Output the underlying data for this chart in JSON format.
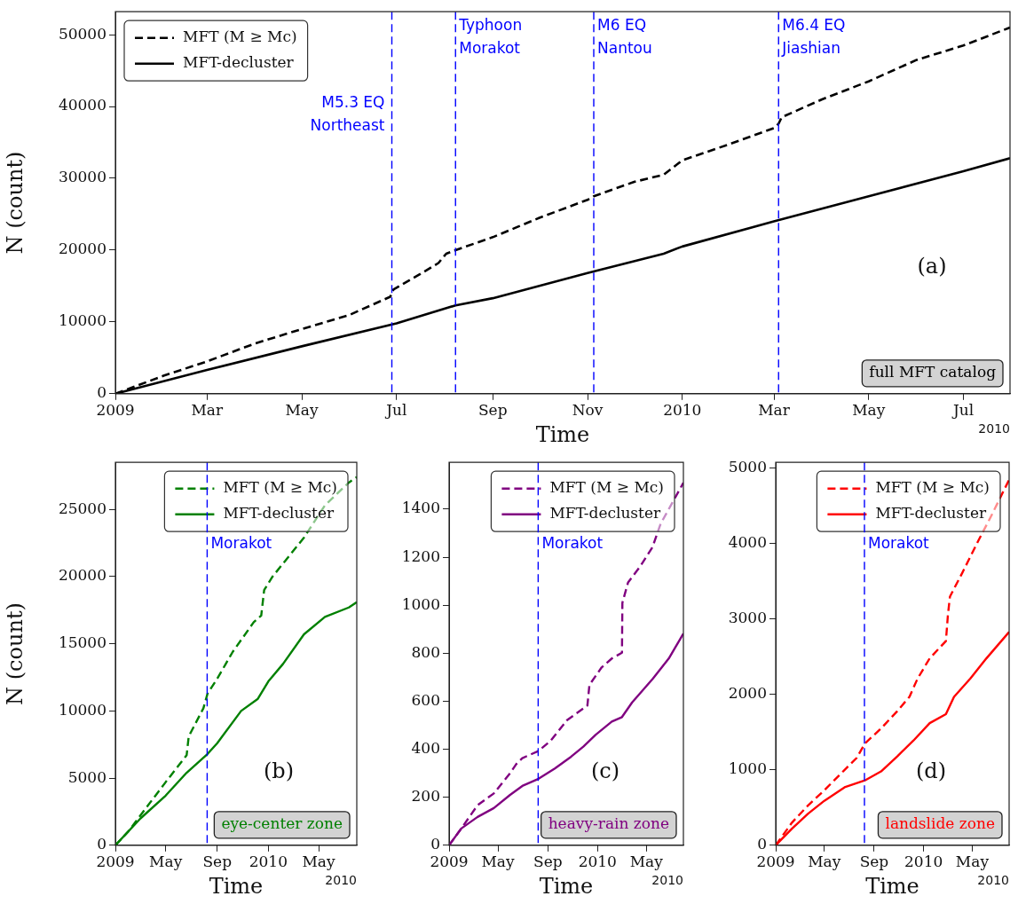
{
  "chart_data": [
    {
      "type": "line",
      "xlabel": "Time",
      "ylabel": "N (count)",
      "xlim": [
        "2009-01-01",
        "2010-07-31"
      ],
      "ylim": [
        0,
        53200
      ],
      "xticks": [
        {
          "value": "2009-01",
          "label": "2009"
        },
        {
          "value": "2009-03",
          "label": "Mar"
        },
        {
          "value": "2009-05",
          "label": "May"
        },
        {
          "value": "2009-07",
          "label": "Jul"
        },
        {
          "value": "2009-09",
          "label": "Sep"
        },
        {
          "value": "2009-11",
          "label": "Nov"
        },
        {
          "value": "2010-01",
          "label": "2010"
        },
        {
          "value": "2010-03",
          "label": "Mar"
        },
        {
          "value": "2010-05",
          "label": "May"
        },
        {
          "value": "2010-07",
          "label": "Jul"
        }
      ],
      "yticks": [
        0,
        10000,
        20000,
        30000,
        40000,
        50000
      ],
      "legend": "top left",
      "series": [
        {
          "name": "MFT (M ≥ Mc)",
          "color": "#000000",
          "line_style": "dashed",
          "x": [
            "2009-01-01",
            "2009-02-01",
            "2009-03-01",
            "2009-04-01",
            "2009-05-01",
            "2009-06-01",
            "2009-06-27",
            "2009-06-29",
            "2009-07-15",
            "2009-07-28",
            "2009-08-02",
            "2009-08-08",
            "2009-09-01",
            "2009-10-01",
            "2009-11-01",
            "2009-11-05",
            "2009-12-01",
            "2009-12-20",
            "2010-01-01",
            "2010-02-01",
            "2010-03-01",
            "2010-03-04",
            "2010-03-06",
            "2010-04-01",
            "2010-05-01",
            "2010-06-01",
            "2010-07-01",
            "2010-07-31"
          ],
          "values": [
            0,
            2500,
            4500,
            7000,
            9000,
            11000,
            13500,
            14500,
            16500,
            18200,
            19500,
            20000,
            21800,
            24500,
            27000,
            27500,
            29500,
            30500,
            32500,
            34800,
            37000,
            37600,
            38500,
            41000,
            43500,
            46500,
            48500,
            51000
          ]
        },
        {
          "name": "MFT-decluster",
          "color": "#000000",
          "line_style": "solid",
          "x": [
            "2009-01-01",
            "2009-03-01",
            "2009-05-01",
            "2009-07-01",
            "2009-08-08",
            "2009-09-01",
            "2009-11-01",
            "2009-12-20",
            "2010-01-01",
            "2010-03-01",
            "2010-05-01",
            "2010-07-01",
            "2010-07-31"
          ],
          "values": [
            0,
            3300,
            6600,
            9800,
            12300,
            13300,
            16800,
            19500,
            20500,
            24000,
            27500,
            31000,
            32800
          ]
        }
      ],
      "ref_lines": [
        {
          "axis": "x",
          "value": "2009-06-28",
          "label": "M5.3 EQ\nNortheast",
          "color": "#0000ff",
          "line_style": "dashed"
        },
        {
          "axis": "x",
          "value": "2009-08-08",
          "label": "Typhoon\nMorakot",
          "color": "#0000ff",
          "line_style": "dashed"
        },
        {
          "axis": "x",
          "value": "2009-11-05",
          "label": "M6 EQ\nNantou",
          "color": "#0000ff",
          "line_style": "dashed"
        },
        {
          "axis": "x",
          "value": "2010-03-04",
          "label": "M6.4 EQ\nJiashian",
          "color": "#0000ff",
          "line_style": "dashed"
        }
      ],
      "annotations": [
        "(a)",
        "full MFT catalog",
        "2010"
      ]
    },
    {
      "type": "line",
      "xlabel": "Time",
      "ylabel": "N (count)",
      "xlim": [
        "2009-01-01",
        "2010-07-31"
      ],
      "ylim": [
        0,
        28500
      ],
      "xticks": [
        {
          "value": "2009-01",
          "label": "2009"
        },
        {
          "value": "2009-05",
          "label": "May"
        },
        {
          "value": "2009-09",
          "label": "Sep"
        },
        {
          "value": "2010-01",
          "label": "2010"
        },
        {
          "value": "2010-05",
          "label": "May"
        }
      ],
      "yticks": [
        0,
        5000,
        10000,
        15000,
        20000,
        25000
      ],
      "legend": "top right",
      "series": [
        {
          "name": "MFT (M ≥ Mc)",
          "color": "#008000",
          "line_style": "dashed",
          "x": [
            "2009-01-01",
            "2009-01-31",
            "2009-05-01",
            "2009-06-20",
            "2009-06-25",
            "2009-07-30",
            "2009-08-09",
            "2009-09-01",
            "2009-10-08",
            "2009-11-27",
            "2009-12-15",
            "2009-12-22",
            "2010-01-11",
            "2010-03-27",
            "2010-05-16",
            "2010-07-12",
            "2010-07-31"
          ],
          "values": [
            0,
            1000,
            4700,
            6700,
            8100,
            10200,
            11300,
            12400,
            14400,
            16600,
            17100,
            19000,
            20000,
            22900,
            25300,
            27000,
            27400
          ]
        },
        {
          "name": "MFT-decluster",
          "color": "#008000",
          "line_style": "solid",
          "x": [
            "2009-01-01",
            "2009-03-02",
            "2009-05-01",
            "2009-06-20",
            "2009-08-09",
            "2009-09-01",
            "2009-10-28",
            "2009-12-07",
            "2010-01-01",
            "2010-02-05",
            "2010-03-27",
            "2010-05-16",
            "2010-07-12",
            "2010-07-31"
          ],
          "values": [
            0,
            2000,
            3700,
            5400,
            6800,
            7600,
            10000,
            10900,
            12200,
            13500,
            15700,
            17000,
            17700,
            18100
          ]
        }
      ],
      "ref_lines": [
        {
          "axis": "x",
          "value": "2009-08-08",
          "label": "Morakot",
          "color": "#0000ff",
          "line_style": "dashed"
        }
      ],
      "annotations": [
        "(b)",
        "eye-center zone",
        "2010"
      ]
    },
    {
      "type": "line",
      "xlabel": "Time",
      "xlim": [
        "2009-01-01",
        "2010-07-31"
      ],
      "ylim": [
        0,
        1595
      ],
      "xticks": [
        {
          "value": "2009-01",
          "label": "2009"
        },
        {
          "value": "2009-05",
          "label": "May"
        },
        {
          "value": "2009-09",
          "label": "Sep"
        },
        {
          "value": "2010-01",
          "label": "2010"
        },
        {
          "value": "2010-05",
          "label": "May"
        }
      ],
      "yticks": [
        0,
        200,
        400,
        600,
        800,
        1000,
        1200,
        1400
      ],
      "legend": "top right",
      "series": [
        {
          "name": "MFT (M ≥ Mc)",
          "color": "#800080",
          "line_style": "dashed",
          "x": [
            "2009-01-01",
            "2009-01-31",
            "2009-03-12",
            "2009-04-21",
            "2009-05-31",
            "2009-06-15",
            "2009-06-30",
            "2009-08-09",
            "2009-09-08",
            "2009-10-18",
            "2009-12-07",
            "2009-12-12",
            "2010-01-11",
            "2010-02-05",
            "2010-03-02",
            "2010-03-03",
            "2010-03-17",
            "2010-04-16",
            "2010-05-16",
            "2010-06-05",
            "2010-07-31"
          ],
          "values": [
            0,
            70,
            167,
            216,
            300,
            338,
            363,
            393,
            436,
            521,
            582,
            668,
            741,
            778,
            802,
            1010,
            1095,
            1162,
            1242,
            1339,
            1510
          ]
        },
        {
          "name": "MFT-decluster",
          "color": "#800080",
          "line_style": "solid",
          "x": [
            "2009-01-01",
            "2009-01-31",
            "2009-03-12",
            "2009-04-21",
            "2009-05-31",
            "2009-06-30",
            "2009-08-09",
            "2009-09-18",
            "2009-10-28",
            "2009-11-27",
            "2009-12-27",
            "2010-02-05",
            "2010-03-02",
            "2010-03-27",
            "2010-05-16",
            "2010-06-25",
            "2010-07-31"
          ],
          "values": [
            0,
            70,
            118,
            155,
            210,
            247,
            277,
            320,
            369,
            411,
            460,
            515,
            534,
            595,
            692,
            778,
            882
          ]
        }
      ],
      "ref_lines": [
        {
          "axis": "x",
          "value": "2009-08-08",
          "label": "Morakot",
          "color": "#0000ff",
          "line_style": "dashed"
        }
      ],
      "annotations": [
        "(c)",
        "heavy-rain zone",
        "2010"
      ]
    },
    {
      "type": "line",
      "xlabel": "Time",
      "xlim": [
        "2009-01-01",
        "2010-07-31"
      ],
      "ylim": [
        0,
        5080
      ],
      "xticks": [
        {
          "value": "2009-01",
          "label": "2009"
        },
        {
          "value": "2009-05",
          "label": "May"
        },
        {
          "value": "2009-09",
          "label": "Sep"
        },
        {
          "value": "2010-01",
          "label": "2010"
        },
        {
          "value": "2010-05",
          "label": "May"
        }
      ],
      "yticks": [
        0,
        1000,
        2000,
        3000,
        4000,
        5000
      ],
      "legend": "top right",
      "series": [
        {
          "name": "MFT (M ≥ Mc)",
          "color": "#ff0000",
          "line_style": "dashed",
          "x": [
            "2009-01-01",
            "2009-02-10",
            "2009-03-22",
            "2009-05-01",
            "2009-06-20",
            "2009-07-20",
            "2009-08-09",
            "2009-09-18",
            "2009-10-28",
            "2009-11-27",
            "2009-12-17",
            "2010-01-16",
            "2010-02-25",
            "2010-03-02",
            "2010-03-07",
            "2010-04-06",
            "2010-05-16",
            "2010-06-15",
            "2010-07-31"
          ],
          "values": [
            0,
            300,
            530,
            730,
            1000,
            1160,
            1350,
            1550,
            1780,
            1970,
            2210,
            2480,
            2710,
            3060,
            3300,
            3610,
            4040,
            4350,
            4850
          ]
        },
        {
          "name": "MFT-decluster",
          "color": "#ff0000",
          "line_style": "solid",
          "x": [
            "2009-01-01",
            "2009-02-10",
            "2009-03-22",
            "2009-05-01",
            "2009-06-20",
            "2009-08-09",
            "2009-09-18",
            "2009-10-28",
            "2009-12-07",
            "2010-01-16",
            "2010-02-25",
            "2010-03-17",
            "2010-04-26",
            "2010-06-05",
            "2010-07-31"
          ],
          "values": [
            0,
            220,
            420,
            590,
            770,
            860,
            980,
            1180,
            1390,
            1620,
            1740,
            1970,
            2210,
            2480,
            2830
          ]
        }
      ],
      "ref_lines": [
        {
          "axis": "x",
          "value": "2009-08-08",
          "label": "Morakot",
          "color": "#0000ff",
          "line_style": "dashed"
        }
      ],
      "annotations": [
        "(d)",
        "landslide zone",
        "2010"
      ]
    }
  ]
}
